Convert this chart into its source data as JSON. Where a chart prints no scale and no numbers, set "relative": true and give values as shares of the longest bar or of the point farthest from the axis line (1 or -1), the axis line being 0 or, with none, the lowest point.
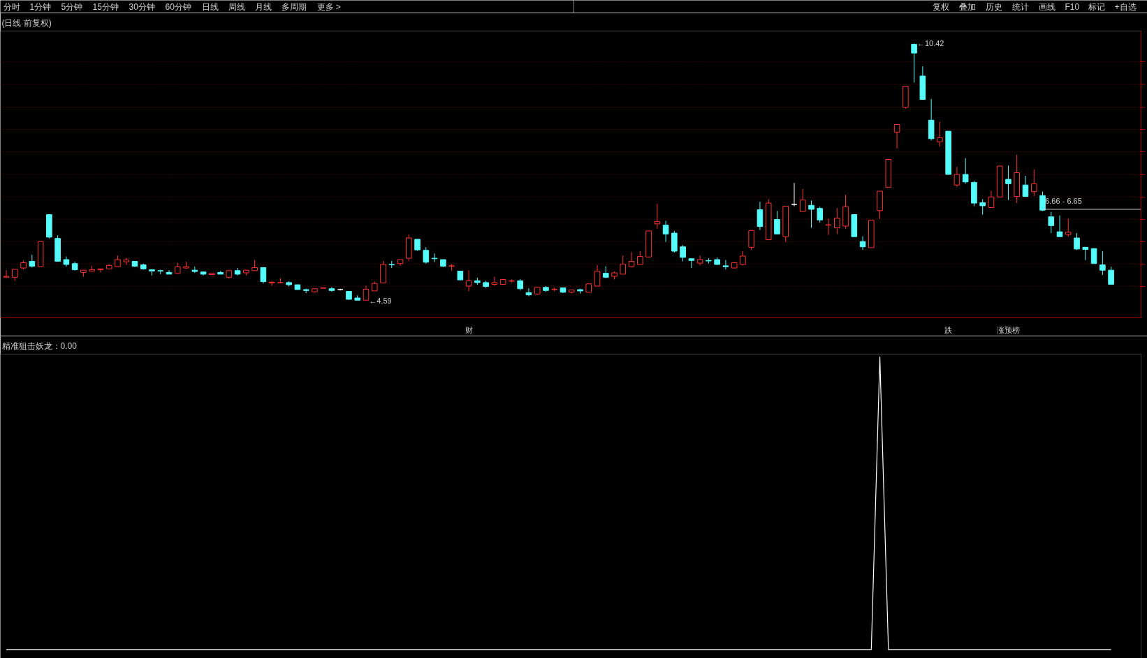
{
  "chart_data": [
    {
      "type": "other",
      "annotations": [
        "分时",
        "1分钟",
        "5分钟",
        "15分钟",
        "30分钟",
        "60分钟",
        "日线",
        "周线",
        "月线",
        "多周期",
        "更多 >"
      ]
    },
    {
      "type": "other",
      "annotations": [
        "复权",
        "叠加",
        "历史",
        "统计",
        "画线",
        "F10",
        "标记",
        "+自选"
      ]
    },
    {
      "type": "candlestick",
      "title": "(日线 前复权)",
      "categories": [
        null,
        null,
        null,
        null,
        null,
        null,
        null,
        null,
        null,
        null,
        null,
        null,
        null,
        null,
        null,
        null,
        null,
        null,
        null,
        null,
        null,
        null,
        null,
        null,
        null,
        null,
        null,
        null,
        null,
        null,
        null,
        null,
        null,
        null,
        null,
        null,
        null,
        null,
        null,
        null,
        null,
        null,
        null,
        null,
        null,
        null,
        null,
        null,
        null,
        null,
        null,
        null,
        null,
        null,
        "财",
        null,
        null,
        null,
        null,
        null,
        null,
        null,
        null,
        null,
        null,
        null,
        null,
        null,
        null,
        null,
        null,
        null,
        null,
        null,
        null,
        null,
        null,
        null,
        null,
        null,
        null,
        null,
        null,
        null,
        null,
        null,
        null,
        null,
        null,
        null,
        null,
        null,
        null,
        null,
        null,
        null,
        null,
        null,
        null,
        null,
        null,
        null,
        null,
        null,
        null,
        null,
        null,
        null,
        null,
        null,
        "跌",
        null,
        null,
        null,
        null,
        null,
        null,
        "涨预榜",
        null,
        null,
        null,
        null,
        null,
        null,
        null,
        null,
        null,
        null,
        null,
        null
      ],
      "ohlc": [
        [
          5.12,
          5.28,
          5.12,
          5.14
        ],
        [
          5.12,
          5.3,
          5.04,
          5.3
        ],
        [
          5.33,
          5.5,
          5.3,
          5.45
        ],
        [
          5.48,
          5.63,
          5.34,
          5.37
        ],
        [
          5.36,
          5.93,
          5.36,
          5.93
        ],
        [
          6.54,
          6.54,
          6.0,
          6.03
        ],
        [
          6.0,
          6.07,
          5.48,
          5.48
        ],
        [
          5.52,
          5.59,
          5.36,
          5.41
        ],
        [
          5.43,
          5.47,
          5.27,
          5.29
        ],
        [
          5.23,
          5.28,
          5.13,
          5.28
        ],
        [
          5.26,
          5.38,
          5.26,
          5.29
        ],
        [
          5.29,
          5.31,
          5.23,
          5.31
        ],
        [
          5.31,
          5.41,
          5.3,
          5.39
        ],
        [
          5.36,
          5.61,
          5.36,
          5.52
        ],
        [
          5.47,
          5.56,
          5.4,
          5.51
        ],
        [
          5.48,
          5.48,
          5.35,
          5.37
        ],
        [
          5.4,
          5.43,
          5.29,
          5.31
        ],
        [
          5.29,
          5.29,
          5.16,
          5.26
        ],
        [
          5.27,
          5.29,
          5.19,
          5.26
        ],
        [
          5.23,
          5.28,
          5.19,
          5.19
        ],
        [
          5.21,
          5.45,
          5.21,
          5.36
        ],
        [
          5.33,
          5.47,
          5.31,
          5.36
        ],
        [
          5.28,
          5.36,
          5.22,
          5.25
        ],
        [
          5.24,
          5.24,
          5.16,
          5.19
        ],
        [
          5.18,
          5.21,
          5.18,
          5.21
        ],
        [
          5.23,
          5.26,
          5.19,
          5.19
        ],
        [
          5.12,
          5.27,
          5.09,
          5.27
        ],
        [
          5.27,
          5.33,
          5.16,
          5.19
        ],
        [
          5.22,
          5.28,
          5.16,
          5.28
        ],
        [
          5.27,
          5.51,
          5.27,
          5.34
        ],
        [
          5.34,
          5.34,
          4.98,
          5.02
        ],
        [
          4.99,
          5.03,
          4.93,
          5.01
        ],
        [
          4.99,
          5.1,
          4.98,
          5.0
        ],
        [
          5.0,
          5.03,
          4.91,
          4.95
        ],
        [
          4.95,
          4.95,
          4.84,
          4.84
        ],
        [
          4.84,
          4.86,
          4.76,
          4.82
        ],
        [
          4.79,
          4.86,
          4.77,
          4.86
        ],
        [
          4.87,
          4.88,
          4.87,
          4.88
        ],
        [
          4.86,
          4.9,
          4.79,
          4.82
        ],
        [
          4.84,
          4.86,
          4.82,
          4.84
        ],
        [
          4.8,
          4.8,
          4.61,
          4.62
        ],
        [
          4.65,
          4.71,
          4.6,
          4.6
        ],
        [
          4.6,
          4.93,
          4.59,
          4.85
        ],
        [
          4.81,
          5.02,
          4.81,
          4.98
        ],
        [
          4.99,
          5.49,
          4.98,
          5.41
        ],
        [
          5.41,
          5.49,
          5.33,
          5.4
        ],
        [
          5.43,
          5.52,
          5.38,
          5.52
        ],
        [
          5.55,
          6.09,
          5.49,
          6.01
        ],
        [
          5.98,
          5.98,
          5.72,
          5.74
        ],
        [
          5.73,
          5.8,
          5.43,
          5.46
        ],
        [
          5.55,
          5.66,
          5.46,
          5.54
        ],
        [
          5.52,
          5.52,
          5.35,
          5.37
        ],
        [
          5.37,
          5.42,
          5.27,
          5.38
        ],
        [
          5.26,
          5.26,
          5.05,
          5.06
        ],
        [
          4.92,
          5.28,
          4.8,
          5.04
        ],
        [
          5.04,
          5.11,
          4.95,
          5.0
        ],
        [
          5.0,
          5.04,
          4.88,
          4.91
        ],
        [
          4.96,
          5.13,
          4.93,
          5.0
        ],
        [
          4.96,
          5.07,
          4.96,
          5.07
        ],
        [
          5.03,
          5.07,
          5.0,
          5.04
        ],
        [
          5.04,
          5.08,
          4.82,
          4.86
        ],
        [
          4.77,
          4.87,
          4.69,
          4.72
        ],
        [
          4.74,
          4.89,
          4.72,
          4.89
        ],
        [
          4.89,
          4.92,
          4.79,
          4.82
        ],
        [
          4.84,
          4.89,
          4.8,
          4.85
        ],
        [
          4.88,
          4.88,
          4.76,
          4.78
        ],
        [
          4.78,
          4.83,
          4.75,
          4.83
        ],
        [
          4.84,
          4.86,
          4.75,
          4.81
        ],
        [
          4.78,
          4.97,
          4.77,
          4.97
        ],
        [
          4.92,
          5.4,
          4.92,
          5.26
        ],
        [
          5.21,
          5.37,
          5.1,
          5.12
        ],
        [
          5.14,
          5.25,
          5.07,
          5.22
        ],
        [
          5.19,
          5.61,
          5.19,
          5.42
        ],
        [
          5.36,
          5.69,
          5.34,
          5.48
        ],
        [
          5.41,
          5.71,
          5.41,
          5.59
        ],
        [
          5.58,
          6.17,
          5.58,
          6.17
        ],
        [
          6.33,
          6.79,
          6.22,
          6.38
        ],
        [
          6.3,
          6.4,
          5.92,
          6.1
        ],
        [
          6.12,
          6.17,
          5.68,
          5.71
        ],
        [
          5.81,
          5.85,
          5.48,
          5.57
        ],
        [
          5.54,
          5.54,
          5.33,
          5.5
        ],
        [
          5.44,
          5.61,
          5.39,
          5.52
        ],
        [
          5.5,
          5.55,
          5.43,
          5.49
        ],
        [
          5.52,
          5.57,
          5.4,
          5.41
        ],
        [
          5.38,
          5.51,
          5.3,
          5.36
        ],
        [
          5.33,
          5.45,
          5.33,
          5.45
        ],
        [
          5.41,
          5.71,
          5.39,
          5.6
        ],
        [
          5.8,
          6.18,
          5.74,
          6.18
        ],
        [
          6.65,
          6.83,
          6.19,
          6.27
        ],
        [
          5.97,
          6.89,
          5.96,
          6.8
        ],
        [
          6.43,
          6.62,
          6.1,
          6.1
        ],
        [
          6.04,
          6.73,
          5.92,
          6.73
        ],
        [
          6.77,
          7.26,
          6.73,
          6.77
        ],
        [
          6.61,
          7.12,
          6.61,
          6.87
        ],
        [
          6.75,
          6.86,
          6.24,
          6.66
        ],
        [
          6.68,
          6.72,
          6.36,
          6.42
        ],
        [
          6.3,
          6.45,
          6.08,
          6.31
        ],
        [
          6.24,
          6.69,
          6.1,
          6.46
        ],
        [
          6.28,
          6.99,
          6.22,
          6.72
        ],
        [
          6.54,
          6.54,
          6.04,
          6.04
        ],
        [
          5.93,
          6.05,
          5.74,
          5.81
        ],
        [
          5.79,
          6.41,
          5.79,
          6.41
        ],
        [
          6.63,
          7.07,
          6.44,
          7.07
        ],
        [
          7.16,
          7.79,
          7.16,
          7.79
        ],
        [
          8.41,
          8.58,
          8.04,
          8.58
        ],
        [
          8.97,
          9.45,
          8.94,
          9.45
        ],
        [
          10.4,
          10.42,
          9.53,
          10.2
        ],
        [
          9.68,
          9.9,
          9.15,
          9.15
        ],
        [
          8.68,
          9.16,
          8.22,
          8.26
        ],
        [
          8.19,
          8.64,
          8.08,
          8.28
        ],
        [
          8.43,
          8.43,
          7.45,
          7.45
        ],
        [
          7.21,
          7.62,
          7.17,
          7.45
        ],
        [
          7.45,
          7.82,
          7.24,
          7.28
        ],
        [
          7.27,
          7.3,
          6.73,
          6.8
        ],
        [
          6.81,
          6.89,
          6.54,
          6.74
        ],
        [
          6.7,
          7.08,
          6.7,
          6.94
        ],
        [
          6.94,
          7.64,
          6.94,
          7.64
        ],
        [
          7.34,
          7.65,
          6.87,
          7.24
        ],
        [
          6.95,
          7.9,
          6.8,
          7.49
        ],
        [
          7.21,
          7.42,
          6.95,
          6.95
        ],
        [
          7.06,
          7.56,
          6.96,
          7.24
        ],
        [
          6.97,
          7.06,
          6.62,
          6.64
        ],
        [
          6.49,
          6.6,
          6.12,
          6.29
        ],
        [
          6.15,
          6.52,
          6.04,
          6.04
        ],
        [
          6.09,
          6.45,
          6.04,
          6.14
        ],
        [
          6.01,
          6.12,
          5.74,
          5.76
        ],
        [
          5.8,
          5.8,
          5.51,
          5.75
        ],
        [
          5.77,
          5.77,
          5.43,
          5.43
        ],
        [
          5.4,
          5.71,
          5.17,
          5.28
        ],
        [
          5.28,
          5.36,
          4.96,
          4.96
        ]
      ],
      "colors": [
        "#ff3232",
        "#ff3232",
        "#ff3232",
        "#54fcfc",
        "#ff3232",
        "#54fcfc",
        "#54fcfc",
        "#54fcfc",
        "#54fcfc",
        "#ff3232",
        "#ff3232",
        "#ff3232",
        "#ff3232",
        "#ff3232",
        "#ff3232",
        "#54fcfc",
        "#54fcfc",
        "#54fcfc",
        "#54fcfc",
        "#54fcfc",
        "#ff3232",
        "#ff3232",
        "#54fcfc",
        "#54fcfc",
        "#ff3232",
        "#54fcfc",
        "#ff3232",
        "#54fcfc",
        "#ff3232",
        "#ff3232",
        "#54fcfc",
        "#ff3232",
        "#ff3232",
        "#54fcfc",
        "#54fcfc",
        "#54fcfc",
        "#ff3232",
        "#ff3232",
        "#54fcfc",
        "#ffffff",
        "#54fcfc",
        "#54fcfc",
        "#ff3232",
        "#ff3232",
        "#ff3232",
        "#54fcfc",
        "#ff3232",
        "#ff3232",
        "#54fcfc",
        "#54fcfc",
        "#54fcfc",
        "#54fcfc",
        "#ff3232",
        "#54fcfc",
        "#ff3232",
        "#54fcfc",
        "#54fcfc",
        "#ff3232",
        "#ff3232",
        "#ff3232",
        "#54fcfc",
        "#54fcfc",
        "#ff3232",
        "#54fcfc",
        "#ff3232",
        "#54fcfc",
        "#ff3232",
        "#54fcfc",
        "#ff3232",
        "#ff3232",
        "#54fcfc",
        "#ff3232",
        "#ff3232",
        "#ff3232",
        "#ff3232",
        "#ff3232",
        "#ff3232",
        "#54fcfc",
        "#54fcfc",
        "#54fcfc",
        "#54fcfc",
        "#ff3232",
        "#54fcfc",
        "#54fcfc",
        "#54fcfc",
        "#ff3232",
        "#ff3232",
        "#ff3232",
        "#54fcfc",
        "#ff3232",
        "#54fcfc",
        "#ff3232",
        "#ffffff",
        "#ff3232",
        "#54fcfc",
        "#54fcfc",
        "#ff3232",
        "#ff3232",
        "#ff3232",
        "#54fcfc",
        "#54fcfc",
        "#ff3232",
        "#ff3232",
        "#ff3232",
        "#ff3232",
        "#ff3232",
        "#54fcfc",
        "#54fcfc",
        "#54fcfc",
        "#ff3232",
        "#54fcfc",
        "#ff3232",
        "#54fcfc",
        "#54fcfc",
        "#54fcfc",
        "#ff3232",
        "#ff3232",
        "#54fcfc",
        "#ff3232",
        "#54fcfc",
        "#ff3232",
        "#54fcfc",
        "#54fcfc",
        "#54fcfc",
        "#ff3232",
        "#54fcfc",
        "#54fcfc",
        "#54fcfc",
        "#54fcfc",
        "#54fcfc"
      ],
      "ylim": [
        4.2,
        10.7
      ],
      "yticks": [
        {
          "value": 10.01,
          "label": null
        },
        {
          "value": 9.5,
          "label": null
        },
        {
          "value": 8.98,
          "label": null
        },
        {
          "value": 8.47,
          "label": null
        },
        {
          "value": 7.96,
          "label": null
        },
        {
          "value": 7.45,
          "label": null
        },
        {
          "value": 6.94,
          "label": null
        },
        {
          "value": 6.43,
          "label": null
        },
        {
          "value": 5.93,
          "label": null
        },
        {
          "value": 5.42,
          "label": null
        },
        {
          "value": 4.91,
          "label": null
        }
      ],
      "grid": "y",
      "annotations": [
        "←10.42",
        "←4.59"
      ],
      "ref_lines": [
        {
          "axis": "y",
          "value": 6.66,
          "label": "6.66 - 6.65",
          "color": "#c8c8c8"
        }
      ]
    },
    {
      "type": "line",
      "title": "精准狙击妖龙：0.00",
      "relative": true,
      "categories": [
        null,
        null,
        null,
        null,
        null,
        null,
        null,
        null,
        null,
        null,
        null,
        null,
        null,
        null,
        null,
        null,
        null,
        null,
        null,
        null,
        null,
        null,
        null,
        null,
        null,
        null,
        null,
        null,
        null,
        null,
        null,
        null,
        null,
        null,
        null,
        null,
        null,
        null,
        null,
        null,
        null,
        null,
        null,
        null,
        null,
        null,
        null,
        null,
        null,
        null,
        null,
        null,
        null,
        null,
        null,
        null,
        null,
        null,
        null,
        null,
        null,
        null,
        null,
        null,
        null,
        null,
        null,
        null,
        null,
        null,
        null,
        null,
        null,
        null,
        null,
        null,
        null,
        null,
        null,
        null,
        null,
        null,
        null,
        null,
        null,
        null,
        null,
        null,
        null,
        null,
        null,
        null,
        null,
        null,
        null,
        null,
        null,
        null,
        null,
        null,
        null,
        null,
        null,
        null,
        null,
        null,
        null,
        null,
        null,
        null,
        null,
        null,
        null,
        null,
        null,
        null,
        null,
        null,
        null,
        null,
        null,
        null,
        null,
        null,
        null,
        null,
        null,
        null,
        null,
        null
      ],
      "series": [
        {
          "color": "#ffffff",
          "values": [
            0,
            0,
            0,
            0,
            0,
            0,
            0,
            0,
            0,
            0,
            0,
            0,
            0,
            0,
            0,
            0,
            0,
            0,
            0,
            0,
            0,
            0,
            0,
            0,
            0,
            0,
            0,
            0,
            0,
            0,
            0,
            0,
            0,
            0,
            0,
            0,
            0,
            0,
            0,
            0,
            0,
            0,
            0,
            0,
            0,
            0,
            0,
            0,
            0,
            0,
            0,
            0,
            0,
            0,
            0,
            0,
            0,
            0,
            0,
            0,
            0,
            0,
            0,
            0,
            0,
            0,
            0,
            0,
            0,
            0,
            0,
            0,
            0,
            0,
            0,
            0,
            0,
            0,
            0,
            0,
            0,
            0,
            0,
            0,
            0,
            0,
            0,
            0,
            0,
            0,
            0,
            0,
            0,
            0,
            0,
            0,
            0,
            0,
            0,
            0,
            0,
            0,
            1,
            0,
            0,
            0,
            0,
            0,
            0,
            0,
            0,
            0,
            0,
            0,
            0,
            0,
            0,
            0,
            0,
            0,
            0,
            0,
            0,
            0,
            0,
            0,
            0,
            0,
            0,
            0
          ]
        }
      ]
    }
  ]
}
